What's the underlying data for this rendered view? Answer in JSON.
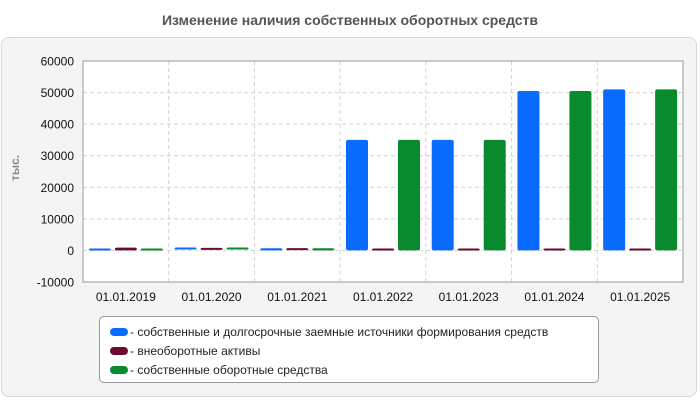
{
  "title": "Изменение наличия собственных оборотных средств",
  "chart_data": {
    "type": "bar",
    "title": "Изменение наличия собственных оборотных средств",
    "ylabel": "тыс.",
    "xlabel": "",
    "ylim": [
      -10000,
      60000
    ],
    "yticks": [
      -10000,
      0,
      10000,
      20000,
      30000,
      40000,
      50000,
      60000
    ],
    "grid": true,
    "legend_position": "bottom",
    "categories": [
      "01.01.2019",
      "01.01.2020",
      "01.01.2021",
      "01.01.2022",
      "01.01.2023",
      "01.01.2024",
      "01.01.2025"
    ],
    "series": [
      {
        "name": "- собственные и долгосрочные заемные источники формирования средств",
        "color": "#0a6cff",
        "values": [
          300,
          600,
          700,
          35000,
          35000,
          50500,
          51000
        ]
      },
      {
        "name": "- внеоборотные активы",
        "color": "#6e0a2e",
        "values": [
          900,
          500,
          400,
          300,
          300,
          300,
          300
        ]
      },
      {
        "name": "- собственные оборотные средства",
        "color": "#0a8a2e",
        "values": [
          300,
          600,
          700,
          35000,
          35000,
          50500,
          51000
        ]
      }
    ]
  }
}
